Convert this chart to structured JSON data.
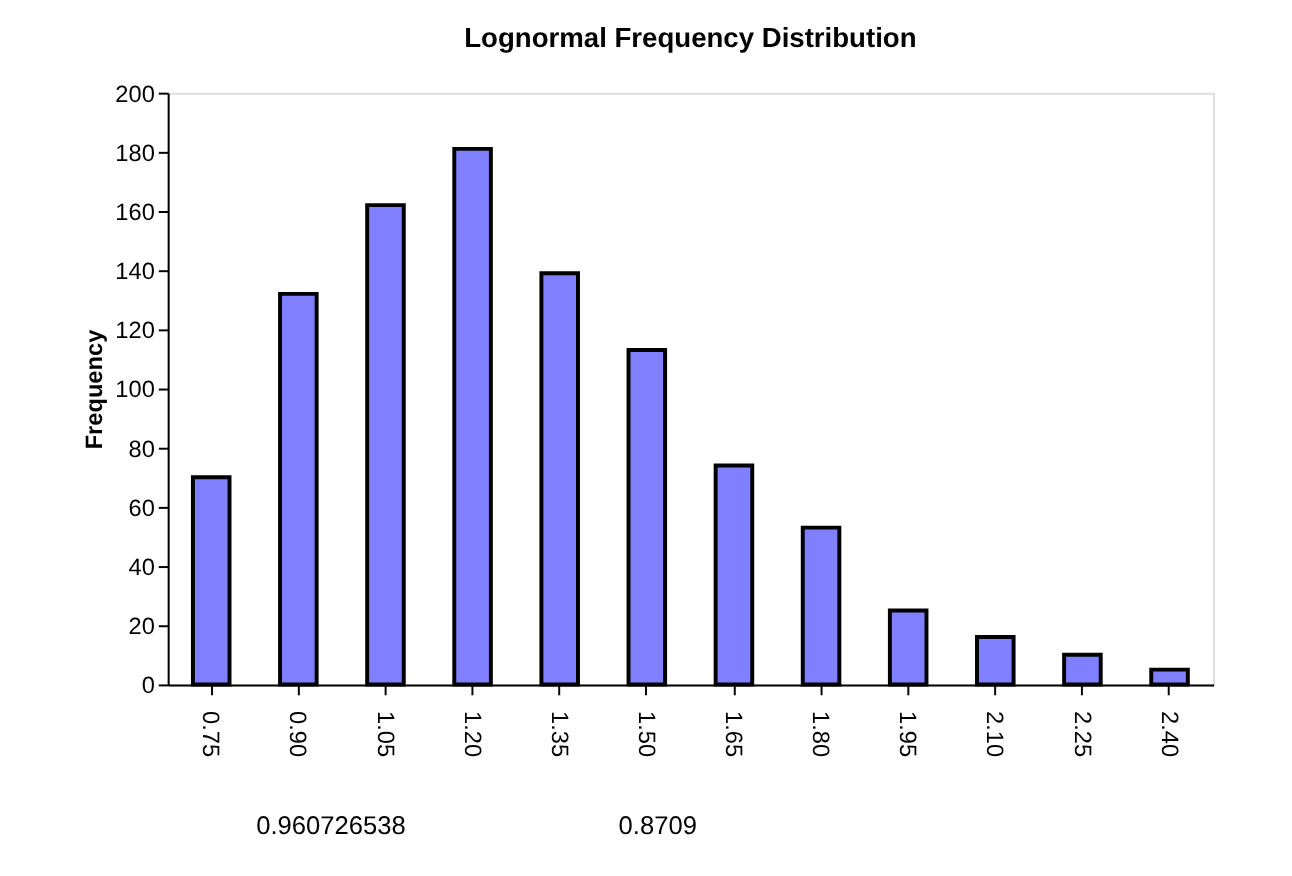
{
  "chart_data": {
    "type": "bar",
    "title": "Lognormal Frequency Distribution",
    "ylabel": "Frequency",
    "categories": [
      "0.75",
      "0.90",
      "1.05",
      "1.20",
      "1.35",
      "1.50",
      "1.65",
      "1.80",
      "1.95",
      "2.10",
      "2.25",
      "2.40"
    ],
    "values": [
      70,
      132,
      162,
      181,
      139,
      113,
      74,
      53,
      25,
      16,
      10,
      5
    ],
    "color": "#8080ff",
    "ylim": [
      0,
      200
    ],
    "yticks": [
      0,
      20,
      40,
      60,
      80,
      100,
      120,
      140,
      160,
      180,
      200
    ],
    "grid": false,
    "annotations": [
      "0.960726538",
      "0.8709"
    ]
  }
}
